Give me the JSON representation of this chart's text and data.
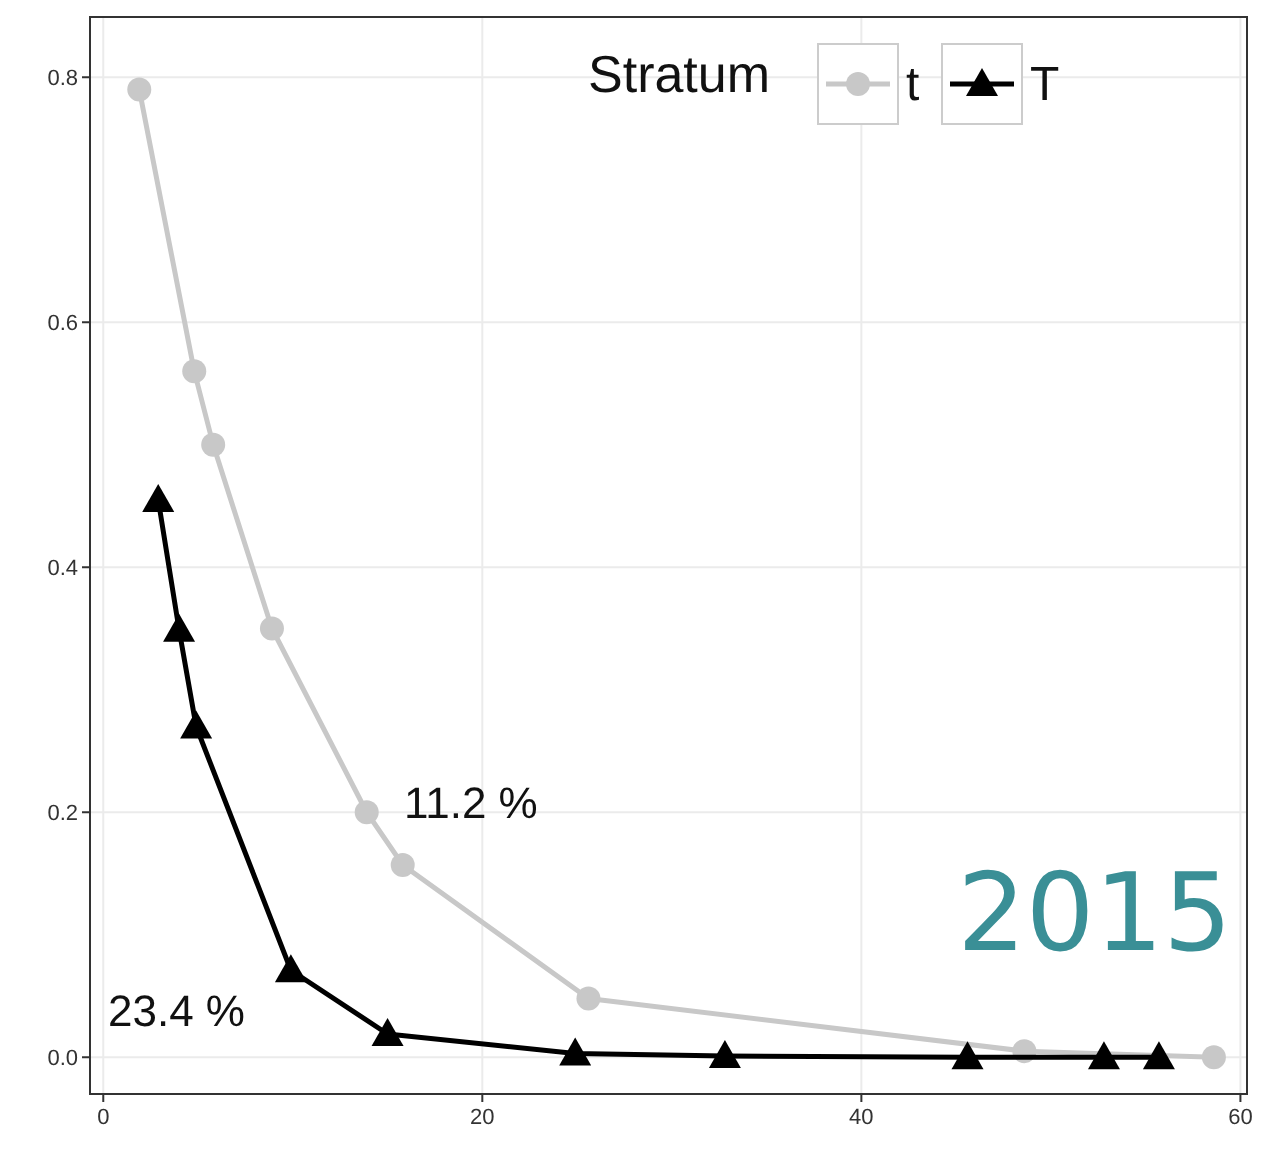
{
  "chart_data": {
    "type": "line",
    "legend_title": "Stratum",
    "legend": "top right",
    "grid": true,
    "line_style": "solid",
    "xlim": [
      -0.7,
      60.4
    ],
    "xticks": [
      0,
      20,
      40,
      60
    ],
    "ylim": [
      -0.03,
      0.85
    ],
    "yticks": [
      {
        "value": 0,
        "label": "0.0"
      },
      {
        "value": 0.2,
        "label": "0.2"
      },
      {
        "value": 0.4,
        "label": "0.4"
      },
      {
        "value": 0.6,
        "label": "0.6"
      },
      {
        "value": 0.8,
        "label": "0.8"
      }
    ],
    "series": [
      {
        "name": "t",
        "color": "#c8c8c8",
        "marker": "circle",
        "x": [
          1.9,
          4.8,
          5.8,
          8.9,
          13.9,
          15.8,
          25.6,
          48.6,
          58.6
        ],
        "values": [
          0.79,
          0.56,
          0.5,
          0.35,
          0.2,
          0.157,
          0.048,
          0.005,
          0
        ]
      },
      {
        "name": "T",
        "color": "#000000",
        "marker": "triangle",
        "x": [
          2.9,
          4,
          4.9,
          9.9,
          15,
          24.9,
          32.8,
          45.6,
          52.8,
          55.7
        ],
        "values": [
          0.455,
          0.349,
          0.27,
          0.071,
          0.019,
          0.003,
          0.001,
          0,
          0,
          0
        ]
      }
    ],
    "annotations": [
      "11.2 %",
      "23.4 %",
      "2015"
    ]
  }
}
